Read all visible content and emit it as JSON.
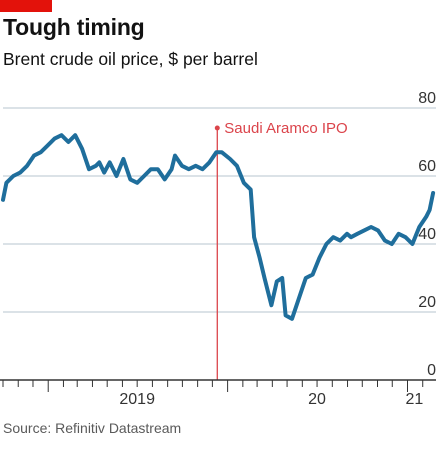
{
  "header": {
    "title": "Tough timing",
    "subtitle": "Brent crude oil price, $ per barrel"
  },
  "footer": {
    "source": "Source: Refinitiv Datastream"
  },
  "colors": {
    "accent": "#e3120b",
    "series": "#1f6e9c",
    "annotation": "#db444b",
    "grid": "#b7c6cf",
    "axis": "#333333"
  },
  "chart_data": {
    "type": "line",
    "title": "Tough timing",
    "subtitle": "Brent crude oil price, $ per barrel",
    "xlabel": "",
    "ylabel": "",
    "ylim": [
      0,
      80
    ],
    "yticks": [
      0,
      20,
      40,
      60,
      80
    ],
    "ytick_labels": [
      "0",
      "20",
      "40",
      "60",
      "80"
    ],
    "xlim": [
      "2018-10-01",
      "2021-02-28"
    ],
    "xtick_labels": [
      {
        "label": "2019",
        "date": "2019-07-01"
      },
      {
        "label": "20",
        "date": "2020-07-01"
      },
      {
        "label": "21",
        "date": "2021-01-15"
      }
    ],
    "grid": true,
    "y_axis_side": "right",
    "series": [
      {
        "x": [
          "2018-10-01",
          "2018-10-08",
          "2018-10-22",
          "2018-11-05",
          "2018-11-19",
          "2018-12-03",
          "2018-12-17",
          "2018-12-31",
          "2019-01-14",
          "2019-01-28",
          "2019-02-11",
          "2019-02-25",
          "2019-03-11",
          "2019-03-25",
          "2019-04-08",
          "2019-04-15",
          "2019-04-25",
          "2019-05-06",
          "2019-05-20",
          "2019-06-03",
          "2019-06-17",
          "2019-07-01",
          "2019-07-15",
          "2019-07-29",
          "2019-08-12",
          "2019-08-26",
          "2019-09-09",
          "2019-09-16",
          "2019-09-30",
          "2019-10-14",
          "2019-10-28",
          "2019-11-11",
          "2019-11-25",
          "2019-12-09",
          "2019-12-20",
          "2020-01-06",
          "2020-01-20",
          "2020-02-03",
          "2020-02-17",
          "2020-02-24",
          "2020-03-06",
          "2020-03-16",
          "2020-03-30",
          "2020-04-10",
          "2020-04-21",
          "2020-04-28",
          "2020-05-11",
          "2020-05-25",
          "2020-06-08",
          "2020-06-22",
          "2020-07-06",
          "2020-07-20",
          "2020-08-03",
          "2020-08-17",
          "2020-08-31",
          "2020-09-08",
          "2020-09-21",
          "2020-10-05",
          "2020-10-19",
          "2020-11-02",
          "2020-11-16",
          "2020-11-30",
          "2020-12-14",
          "2020-12-28",
          "2021-01-11",
          "2021-01-25",
          "2021-02-08",
          "2021-02-15",
          "2021-02-22"
        ],
        "y": [
          53,
          58,
          60,
          61,
          63,
          66,
          67,
          69,
          71,
          72,
          70,
          72,
          68,
          62,
          63,
          64,
          61,
          64,
          60,
          65,
          59,
          58,
          60,
          62,
          62,
          59,
          62,
          66,
          63,
          62,
          63,
          62,
          64,
          67,
          67,
          65,
          63,
          58,
          56,
          42,
          36,
          30,
          22,
          29,
          30,
          19,
          18,
          24,
          30,
          31,
          36,
          40,
          42,
          41,
          43,
          42,
          43,
          44,
          45,
          44,
          41,
          40,
          43,
          42,
          40,
          45,
          48,
          50,
          55
        ]
      }
    ],
    "annotations": [
      {
        "label": "Saudi Aramco IPO",
        "x": "2019-12-11",
        "type": "vline"
      }
    ]
  }
}
